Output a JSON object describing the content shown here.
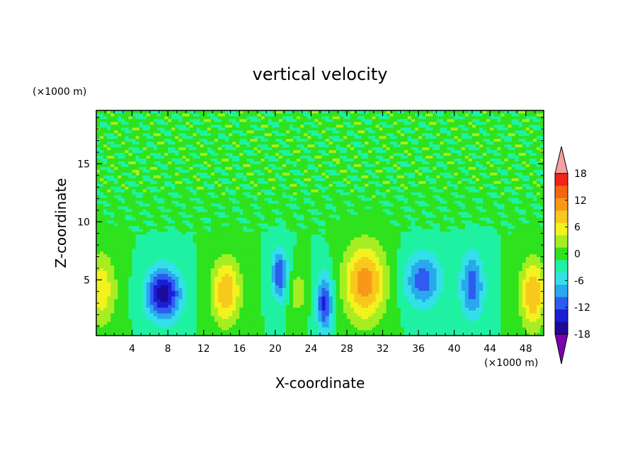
{
  "chart_data": {
    "type": "heatmap",
    "title": "vertical velocity",
    "xlabel": "X-coordinate",
    "ylabel": "Z-coordinate",
    "x_unit": "(×1000 m)",
    "y_unit": "(×1000 m)",
    "xlim": [
      0,
      50
    ],
    "ylim": [
      0.2,
      19.6
    ],
    "x_ticks": [
      4,
      8,
      12,
      16,
      20,
      24,
      28,
      32,
      36,
      40,
      44,
      48
    ],
    "x_tick_labels": [
      "4",
      "8",
      "12",
      "16",
      "20",
      "24",
      "28",
      "32",
      "36",
      "40",
      "44",
      "48"
    ],
    "y_ticks": [
      5,
      10,
      15
    ],
    "y_tick_labels": [
      "5",
      "10",
      "15"
    ],
    "colorbar": {
      "levels": [
        -21,
        -18,
        -15,
        -12,
        -9,
        -6,
        -3,
        0,
        3,
        6,
        9,
        12,
        15,
        18,
        21
      ],
      "tick_values": [
        -18,
        -12,
        -6,
        0,
        6,
        12,
        18
      ],
      "tick_labels": [
        "-18",
        "-12",
        "-6",
        "0",
        "6",
        "12",
        "18"
      ],
      "colors": [
        "#7a00b0",
        "#1c0a99",
        "#1a1ed6",
        "#2e5cf0",
        "#2aa8ee",
        "#33e0e8",
        "#1ef2a2",
        "#2ee21e",
        "#a6ee22",
        "#f2f21e",
        "#f8c81c",
        "#f89818",
        "#f46414",
        "#f02418",
        "#f5a0a0"
      ]
    },
    "features": [
      {
        "x": 0.5,
        "z": 4.2,
        "w": 8,
        "sx": 1.8,
        "sz": 3.2
      },
      {
        "x": 7.5,
        "z": 3.8,
        "w": -17,
        "sx": 1.9,
        "sz": 2.2
      },
      {
        "x": 14.5,
        "z": 4.0,
        "w": 12,
        "sx": 1.6,
        "sz": 2.8
      },
      {
        "x": 20.5,
        "z": 5.5,
        "w": -12,
        "sx": 0.9,
        "sz": 2.2
      },
      {
        "x": 22.5,
        "z": 4.0,
        "w": 5,
        "sx": 1.0,
        "sz": 2.0
      },
      {
        "x": 25.5,
        "z": 3.0,
        "w": -13,
        "sx": 0.9,
        "sz": 2.5
      },
      {
        "x": 30.0,
        "z": 4.8,
        "w": 14,
        "sx": 2.3,
        "sz": 3.3
      },
      {
        "x": 36.5,
        "z": 5.0,
        "w": -11,
        "sx": 2.0,
        "sz": 2.3
      },
      {
        "x": 42.0,
        "z": 4.5,
        "w": -11,
        "sx": 1.3,
        "sz": 2.8
      },
      {
        "x": 48.8,
        "z": 3.8,
        "w": 12,
        "sx": 1.4,
        "sz": 3.0
      }
    ]
  }
}
